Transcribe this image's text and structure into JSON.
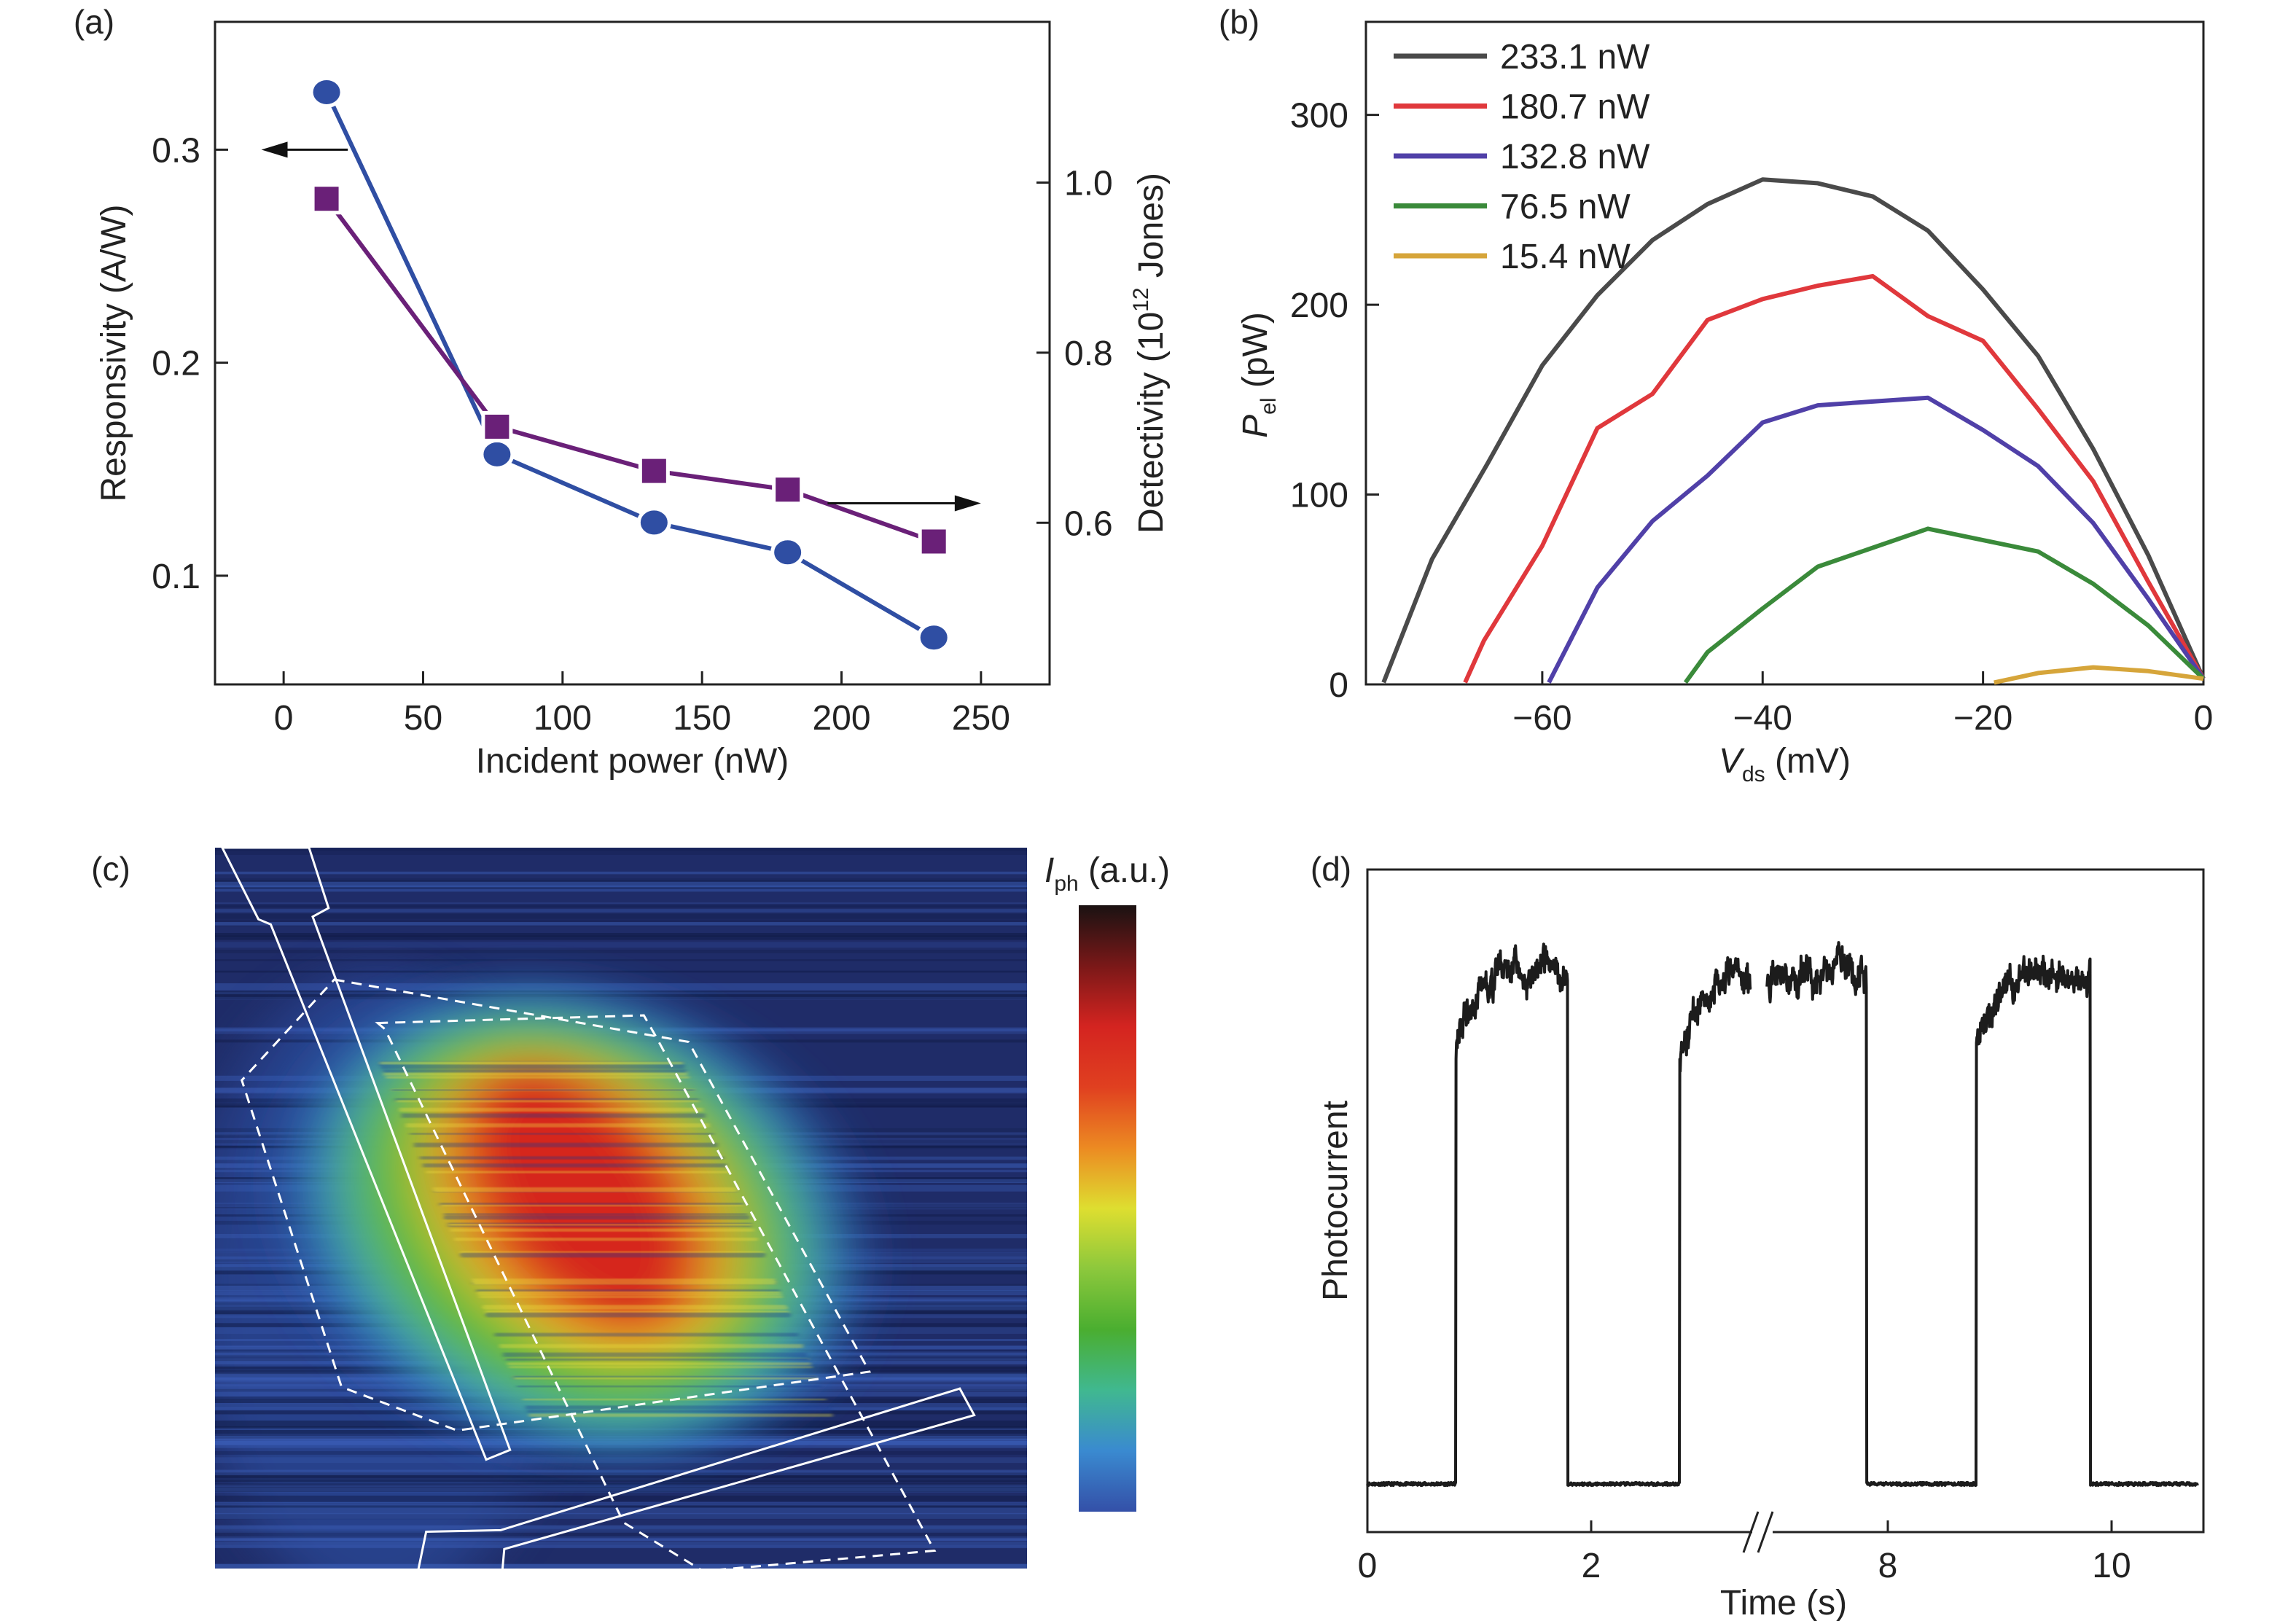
{
  "panels": {
    "a": "(a)",
    "b": "(b)",
    "c": "(c)",
    "d": "(d)"
  },
  "chart_data": [
    {
      "panel": "(a)",
      "type": "line",
      "xlabel": "Incident power (nW)",
      "ylabel": "Responsivity (A/W)",
      "ylabel_right": {
        "main": "Detectivity (10",
        "sup": "12",
        "tail": " Jones)"
      },
      "xlim": [
        -24.6,
        274.6
      ],
      "ylim": [
        0.049,
        0.36
      ],
      "ylim_right": [
        0.41,
        1.189
      ],
      "xticks": [
        0,
        50,
        100,
        150,
        200,
        250
      ],
      "xtick_labels": [
        "0",
        "50",
        "100",
        "150",
        "200",
        "250"
      ],
      "yticks": [
        0.1,
        0.2,
        0.3
      ],
      "ytick_labels": [
        "0.1",
        "0.2",
        "0.3"
      ],
      "yticks_right": [
        0.6,
        0.8,
        1.0
      ],
      "ytick_labels_right": [
        "0.6",
        "0.8",
        "1.0"
      ],
      "grid": false,
      "series": [
        {
          "axis": "left",
          "marker": "circle",
          "color": "#2f4ea3",
          "x": [
            15.4,
            76.5,
            132.8,
            180.7,
            233.1
          ],
          "y": [
            0.327,
            0.157,
            0.125,
            0.111,
            0.071
          ]
        },
        {
          "axis": "right",
          "marker": "square",
          "color": "#6a2078",
          "x": [
            15.4,
            76.5,
            132.8,
            180.7,
            233.1
          ],
          "y": [
            0.981,
            0.713,
            0.661,
            0.639,
            0.578
          ]
        }
      ],
      "annotations": [
        {
          "type": "arrow",
          "direction": "left",
          "series": 0
        },
        {
          "type": "arrow",
          "direction": "right",
          "series": 1
        }
      ]
    },
    {
      "panel": "(b)",
      "type": "line",
      "xlabel": {
        "main": "V",
        "sub": "ds",
        "tail": " (mV)"
      },
      "ylabel": {
        "main": "P",
        "sub": "el",
        "tail": " (pW)"
      },
      "xlim": [
        -76,
        0
      ],
      "ylim": [
        0,
        349
      ],
      "xticks": [
        -60,
        -40,
        -20,
        0
      ],
      "xtick_labels": [
        "−60",
        "−40",
        "−20",
        "0"
      ],
      "yticks": [
        0,
        100,
        200,
        300
      ],
      "ytick_labels": [
        "0",
        "100",
        "200",
        "300"
      ],
      "grid": false,
      "legend": "top-left",
      "series": [
        {
          "name": "233.1 nW",
          "color": "#4a4a4a",
          "x": [
            -74.4,
            -70,
            -65,
            -60,
            -55,
            -50,
            -45,
            -40,
            -35,
            -30,
            -25,
            -20,
            -15,
            -10,
            -5,
            0
          ],
          "y": [
            1,
            66,
            116,
            168,
            205,
            234,
            253,
            266,
            264,
            257,
            239,
            208,
            173,
            124,
            68,
            3
          ]
        },
        {
          "name": "180.7 nW",
          "color": "#e0383c",
          "x": [
            -67,
            -65.3,
            -60,
            -55,
            -50,
            -45,
            -40,
            -35,
            -30,
            -25,
            -20,
            -15,
            -10,
            -5,
            0
          ],
          "y": [
            1,
            23,
            73,
            135,
            153,
            192,
            203,
            210,
            215,
            194,
            181,
            145,
            107,
            54,
            3
          ]
        },
        {
          "name": "132.8 nW",
          "color": "#5040a8",
          "x": [
            -59.4,
            -55,
            -50,
            -45,
            -40,
            -35,
            -30,
            -25,
            -20,
            -15,
            -10,
            -5,
            0
          ],
          "y": [
            1,
            51,
            86,
            110,
            138,
            147,
            149,
            151,
            134,
            115,
            85,
            45,
            3
          ]
        },
        {
          "name": "76.5 nW",
          "color": "#3a8a3a",
          "x": [
            -47,
            -45,
            -40,
            -35,
            -30,
            -25,
            -20,
            -15,
            -10,
            -5,
            0
          ],
          "y": [
            1,
            17,
            40,
            62,
            72,
            82,
            76,
            70,
            53,
            31,
            3
          ]
        },
        {
          "name": "15.4 nW",
          "color": "#d6a53a",
          "x": [
            -19,
            -15,
            -10,
            -5,
            0
          ],
          "y": [
            1,
            6,
            9,
            7,
            3
          ]
        }
      ]
    },
    {
      "panel": "(c)",
      "type": "heatmap",
      "colorbar_label": {
        "main": "I",
        "sub": "ph",
        "tail": " (a.u.)"
      },
      "colormap": [
        "#1a1212",
        "#7a1818",
        "#d42420",
        "#e04020",
        "#ec8a22",
        "#dede30",
        "#8cc83c",
        "#4aae30",
        "#40b890",
        "#3a8ad0",
        "#3450a8"
      ],
      "background_color": "#1f2c68"
    },
    {
      "panel": "(d)",
      "type": "line",
      "xlabel": "Time (s)",
      "ylabel": "Photocurrent",
      "xticks": [
        0,
        2,
        8,
        10
      ],
      "xtick_labels": [
        "0",
        "2",
        "8",
        "10"
      ],
      "axis_break": true,
      "segments": [
        [
          0,
          3.43
        ],
        [
          6.92,
          10.77
        ]
      ],
      "on_intervals": [
        [
          0.79,
          1.79
        ],
        [
          2.79,
          7.81
        ],
        [
          8.79,
          9.81
        ]
      ],
      "off_level": 0,
      "on_level": 1,
      "color": "#1c1c1c"
    }
  ]
}
